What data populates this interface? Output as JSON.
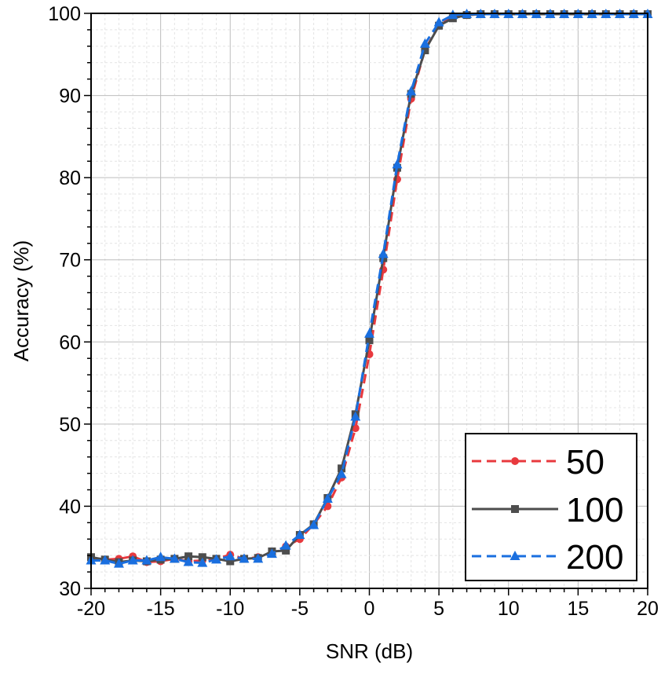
{
  "chart_data": {
    "type": "line",
    "title": "",
    "xlabel": "SNR (dB)",
    "ylabel": "Accuracy (%)",
    "xlim": [
      -20,
      20
    ],
    "ylim": [
      30,
      100
    ],
    "xticks": [
      -20,
      -15,
      -10,
      -5,
      0,
      5,
      10,
      15,
      20
    ],
    "xtick_labels": [
      "-20",
      "-15",
      "-10",
      "-5",
      "0",
      "5",
      "10",
      "15",
      "20"
    ],
    "yticks": [
      30,
      40,
      50,
      60,
      70,
      80,
      90,
      100
    ],
    "ytick_labels": [
      "30",
      "40",
      "50",
      "60",
      "70",
      "80",
      "90",
      "100"
    ],
    "grid": true,
    "legend_position": "bottom-right",
    "x": [
      -20,
      -19,
      -18,
      -17,
      -16,
      -15,
      -14,
      -13,
      -12,
      -11,
      -10,
      -9,
      -8,
      -7,
      -6,
      -5,
      -4,
      -3,
      -2,
      -1,
      0,
      1,
      2,
      3,
      4,
      5,
      6,
      7,
      8,
      9,
      10,
      11,
      12,
      13,
      14,
      15,
      16,
      17,
      18,
      19,
      20
    ],
    "series": [
      {
        "name": "50",
        "color": "#e8393e",
        "line_style": "dashed",
        "marker": "circle",
        "values": [
          33.6,
          33.5,
          33.6,
          33.9,
          33.2,
          33.3,
          33.6,
          33.3,
          33.4,
          33.6,
          34.1,
          33.6,
          33.8,
          34.2,
          35.1,
          36.0,
          37.8,
          40.0,
          43.5,
          49.5,
          58.5,
          68.8,
          79.8,
          89.6,
          95.6,
          98.5,
          99.6,
          99.8,
          99.9,
          99.9,
          99.9,
          99.9,
          99.9,
          99.9,
          99.9,
          99.9,
          99.9,
          99.9,
          99.9,
          99.9,
          99.9
        ]
      },
      {
        "name": "100",
        "color": "#4d4d4d",
        "line_style": "solid",
        "marker": "square",
        "values": [
          33.8,
          33.5,
          33.2,
          33.4,
          33.3,
          33.5,
          33.6,
          33.9,
          33.8,
          33.6,
          33.3,
          33.6,
          33.7,
          34.5,
          34.6,
          36.5,
          37.8,
          41.0,
          44.6,
          51.2,
          60.2,
          70.2,
          81.2,
          90.2,
          95.5,
          98.5,
          99.4,
          99.8,
          99.9,
          99.9,
          99.9,
          99.9,
          99.9,
          99.9,
          99.9,
          99.9,
          99.9,
          99.9,
          99.9,
          99.9,
          99.9
        ]
      },
      {
        "name": "200",
        "color": "#1a6fdf",
        "line_style": "dashed",
        "marker": "triangle",
        "values": [
          33.4,
          33.4,
          33.0,
          33.4,
          33.4,
          33.8,
          33.6,
          33.2,
          33.1,
          33.5,
          33.9,
          33.6,
          33.6,
          34.2,
          35.2,
          36.5,
          37.7,
          40.9,
          43.9,
          50.9,
          61.0,
          70.7,
          81.6,
          90.5,
          96.3,
          98.9,
          99.8,
          99.9,
          99.9,
          99.9,
          99.9,
          99.9,
          99.9,
          99.9,
          99.9,
          99.9,
          99.9,
          99.9,
          99.9,
          99.9,
          99.9
        ]
      }
    ]
  }
}
